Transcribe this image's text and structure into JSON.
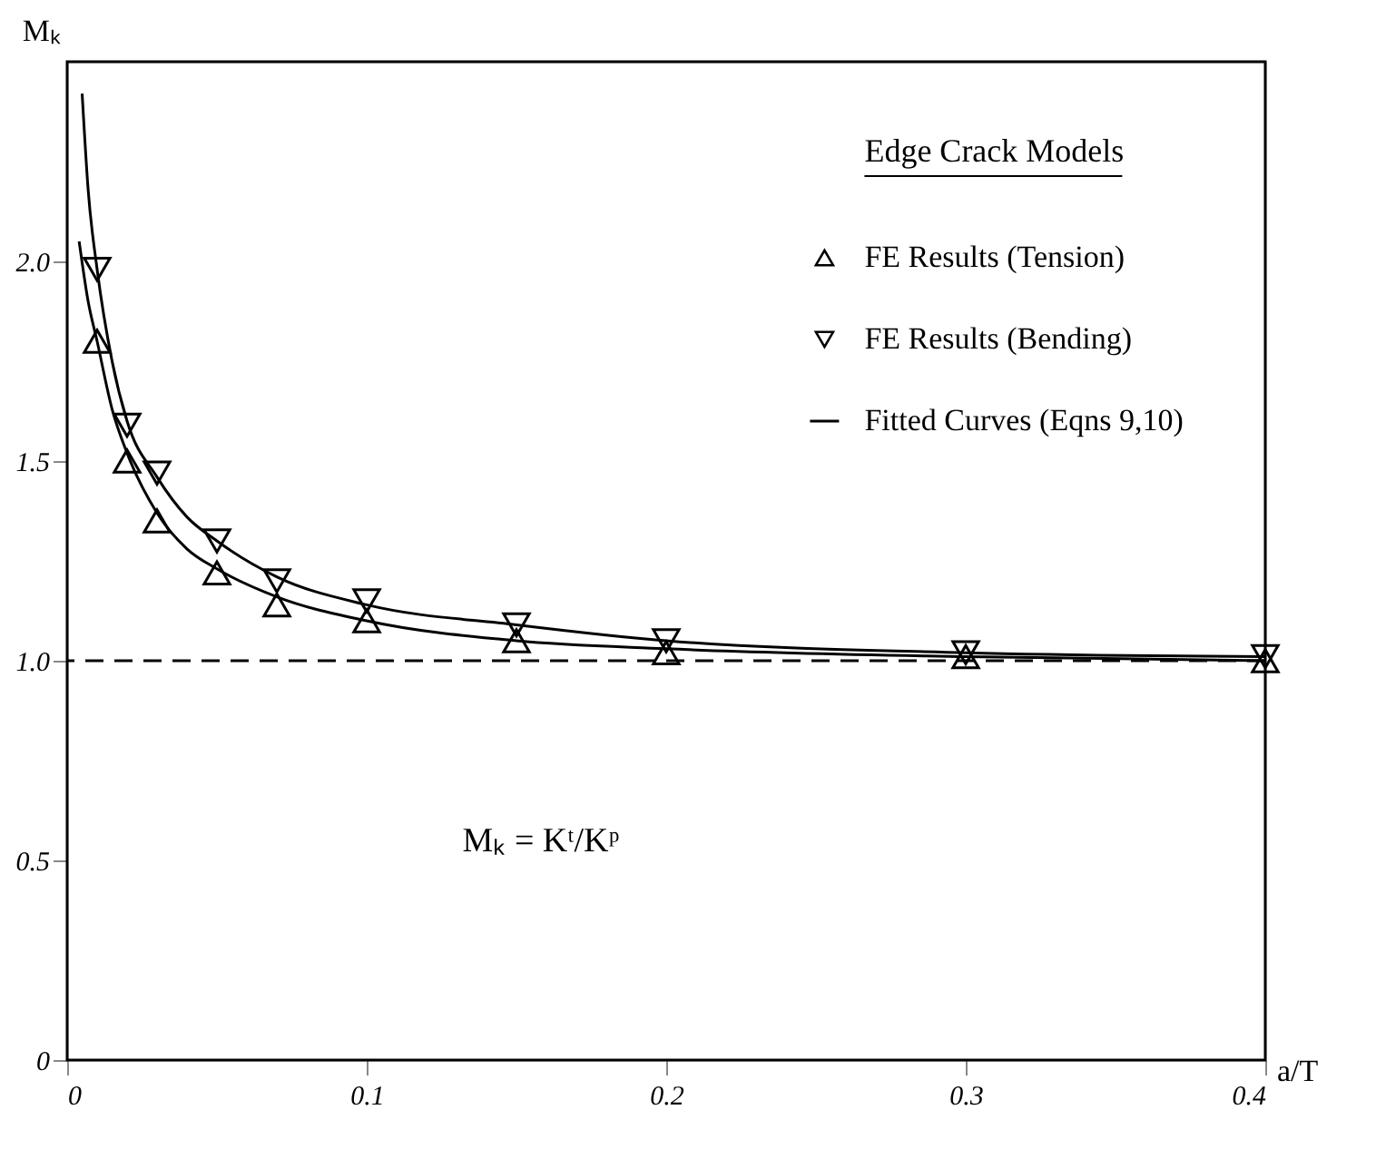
{
  "chart_data": {
    "type": "scatter",
    "legend_title": "Edge Crack Models",
    "xlabel": "a/T",
    "ylabel": "Mₖ",
    "annotations": [
      "Mₖ = Kᵗ/Kᵖ"
    ],
    "series": [
      {
        "name": "FE Results (Tension)",
        "marker": "triangle",
        "color": "#000000",
        "x": [
          0.01,
          0.02,
          0.03,
          0.05,
          0.07,
          0.1,
          0.15,
          0.2,
          0.3,
          0.4
        ],
        "values": [
          1.8,
          1.5,
          1.35,
          1.22,
          1.14,
          1.1,
          1.05,
          1.02,
          1.01,
          1.0
        ]
      },
      {
        "name": "FE Results (Bending)",
        "marker": "triangle-down",
        "color": "#000000",
        "x": [
          0.01,
          0.02,
          0.03,
          0.05,
          0.07,
          0.1,
          0.15,
          0.2,
          0.3,
          0.4
        ],
        "values": [
          1.98,
          1.59,
          1.47,
          1.3,
          1.2,
          1.15,
          1.09,
          1.05,
          1.02,
          1.01
        ]
      },
      {
        "name": "Fitted Curves (Eqns 9,10)",
        "type": "line",
        "marker": "none",
        "color": "#000000",
        "x": [
          0.004,
          0.007,
          0.01,
          0.015,
          0.02,
          0.03,
          0.04,
          0.05,
          0.07,
          0.1,
          0.15,
          0.2,
          0.3,
          0.4
        ],
        "values": [
          2.05,
          1.9,
          1.8,
          1.63,
          1.52,
          1.37,
          1.28,
          1.23,
          1.16,
          1.1,
          1.05,
          1.03,
          1.01,
          1.0
        ]
      },
      {
        "type": "line",
        "marker": "none",
        "color": "#000000",
        "x": [
          0.005,
          0.007,
          0.01,
          0.015,
          0.02,
          0.03,
          0.04,
          0.05,
          0.07,
          0.1,
          0.15,
          0.2,
          0.3,
          0.4
        ],
        "values": [
          2.42,
          2.18,
          1.98,
          1.75,
          1.6,
          1.46,
          1.36,
          1.3,
          1.21,
          1.14,
          1.09,
          1.05,
          1.02,
          1.01
        ]
      }
    ],
    "ref_lines": [
      {
        "axis": "y",
        "value": 1.0,
        "color": "#000000",
        "line_style": "dashed"
      }
    ],
    "xlim": [
      0,
      0.4
    ],
    "xticks": [
      0,
      0.1,
      0.2,
      0.3,
      0.4
    ],
    "ylim": [
      0,
      2.5
    ],
    "yticks": [
      0,
      {
        "value": 0.5,
        "label": "0.5"
      },
      {
        "value": 1.0,
        "label": "1.0"
      },
      {
        "value": 1.5,
        "label": "1.5"
      },
      {
        "value": 2.0,
        "label": "2.0"
      }
    ],
    "grid": false,
    "legend": "top right"
  }
}
